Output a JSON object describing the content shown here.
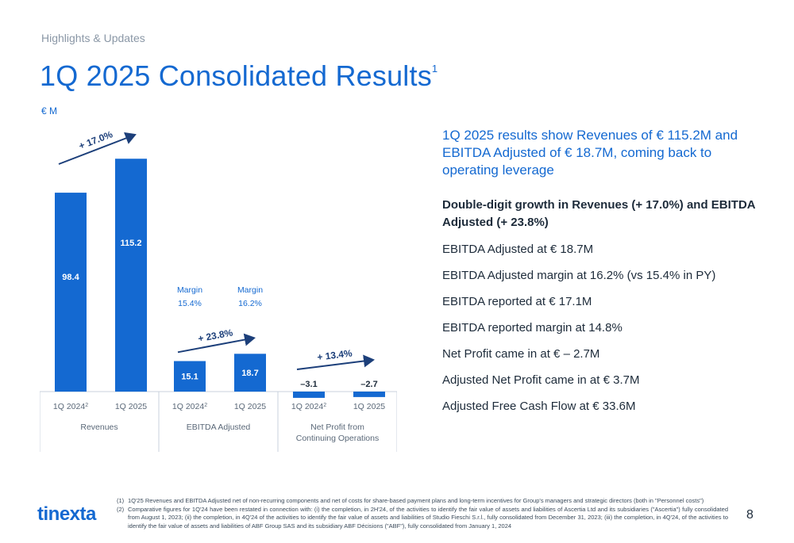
{
  "section": "Highlights & Updates",
  "title": "1Q 2025 Consolidated Results",
  "title_sup": "1",
  "unit": "€ M",
  "headline": "1Q 2025 results show Revenues of € 115.2M and EBITDA Adjusted of € 18.7M, coming back to operating leverage",
  "bold_point": "Double-digit growth in Revenues (+ 17.0%) and EBITDA Adjusted (+ 23.8%)",
  "points": [
    "EBITDA Adjusted at € 18.7M",
    "EBITDA Adjusted margin at 16.2% (vs 15.4% in PY)",
    "EBITDA reported at € 17.1M",
    "EBITDA reported margin at 14.8%",
    "Net Profit came in at € – 2.7M",
    "Adjusted Net Profit came in at € 3.7M",
    "Adjusted Free Cash Flow at € 33.6M"
  ],
  "footnotes": [
    {
      "num": "(1)",
      "text": "1Q'25 Revenues and EBITDA Adjusted net of non-recurring components and net of costs for share-based payment plans and long-term incentives for Group's managers and strategic directors (both in \"Personnel costs\")"
    },
    {
      "num": "(2)",
      "text": "Comparative figures for 1Q'24 have been restated in connection with: (i) the completion, in 2H'24, of the activities to identify the fair value of assets and liabilities of Ascertia Ltd and its subsidiaries (\"Ascertia\") fully consolidated from August 1, 2023; (ii) the completion, in 4Q'24 of the activities to identify the fair value of assets and liabilities of Studio Fieschi S.r.l., fully consolidated from December 31, 2023; (iii) the completion, in 4Q'24, of the activities to identify the fair value of assets and liabilities of ABF Group SAS and its subsidiary ABF Décisions (\"ABF\"), fully consolidated from January 1, 2024"
    }
  ],
  "logo": "tinexta",
  "page_number": "8",
  "colors": {
    "bar": "#1469d1",
    "arrow": "#1c3f7a",
    "text_dark": "#1d2b3a"
  },
  "chart_data": {
    "type": "bar",
    "groups": [
      {
        "name": "Revenues",
        "categories": [
          "1Q 2024",
          "1Q 2025"
        ],
        "category_sups": [
          "2",
          ""
        ],
        "values": [
          98.4,
          115.2
        ],
        "labels": [
          "98.4",
          "115.2"
        ],
        "growth": "+ 17.0%"
      },
      {
        "name": "EBITDA Adjusted",
        "categories": [
          "1Q 2024",
          "1Q 2025"
        ],
        "category_sups": [
          "2",
          ""
        ],
        "values": [
          15.1,
          18.7
        ],
        "labels": [
          "15.1",
          "18.7"
        ],
        "growth": "+ 23.8%",
        "margin_label": "Margin",
        "margins": [
          "15.4%",
          "16.2%"
        ]
      },
      {
        "name": "Net Profit from Continuing Operations",
        "categories": [
          "1Q 2024",
          "1Q 2025"
        ],
        "category_sups": [
          "2",
          ""
        ],
        "values": [
          -3.1,
          -2.7
        ],
        "labels": [
          "–3.1",
          "–2.7"
        ],
        "growth": "+ 13.4%"
      }
    ]
  }
}
